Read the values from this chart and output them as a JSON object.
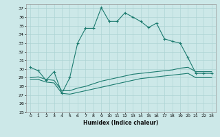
{
  "xlabel": "Humidex (Indice chaleur)",
  "bg_color": "#cce8e8",
  "grid_color": "#aed4d4",
  "line_color": "#1a7a6e",
  "xlim": [
    -0.5,
    23.5
  ],
  "ylim": [
    25,
    37.5
  ],
  "xticks": [
    0,
    1,
    2,
    3,
    4,
    5,
    6,
    7,
    8,
    9,
    10,
    11,
    12,
    13,
    14,
    15,
    16,
    17,
    18,
    19,
    20,
    21,
    22,
    23
  ],
  "yticks": [
    25,
    26,
    27,
    28,
    29,
    30,
    31,
    32,
    33,
    34,
    35,
    36,
    37
  ],
  "line1_x": [
    0,
    1,
    2,
    3,
    4,
    5,
    6,
    7,
    8,
    9,
    10,
    11,
    12,
    13,
    14,
    15,
    16,
    17,
    18,
    19,
    20,
    21,
    22,
    23
  ],
  "line1_y": [
    30.2,
    29.8,
    28.7,
    29.7,
    27.2,
    29.0,
    33.0,
    34.7,
    34.7,
    37.1,
    35.5,
    35.5,
    36.5,
    36.0,
    35.5,
    34.8,
    35.3,
    33.5,
    33.2,
    33.0,
    31.3,
    29.5,
    29.5,
    29.5
  ],
  "line2_x": [
    0,
    1,
    2,
    3,
    4,
    5,
    6,
    7,
    8,
    9,
    10,
    11,
    12,
    13,
    14,
    15,
    16,
    17,
    18,
    19,
    20,
    21,
    22,
    23
  ],
  "line2_y": [
    29.0,
    29.1,
    28.8,
    28.7,
    27.5,
    27.5,
    27.8,
    28.0,
    28.3,
    28.6,
    28.8,
    29.0,
    29.2,
    29.4,
    29.5,
    29.6,
    29.7,
    29.8,
    29.9,
    30.1,
    30.2,
    29.7,
    29.7,
    29.7
  ],
  "line3_x": [
    0,
    1,
    2,
    3,
    4,
    5,
    6,
    7,
    8,
    9,
    10,
    11,
    12,
    13,
    14,
    15,
    16,
    17,
    18,
    19,
    20,
    21,
    22,
    23
  ],
  "line3_y": [
    28.8,
    28.8,
    28.5,
    28.4,
    27.2,
    27.1,
    27.3,
    27.5,
    27.7,
    27.9,
    28.1,
    28.3,
    28.5,
    28.7,
    28.9,
    29.0,
    29.1,
    29.2,
    29.3,
    29.4,
    29.5,
    29.0,
    29.0,
    29.0
  ]
}
